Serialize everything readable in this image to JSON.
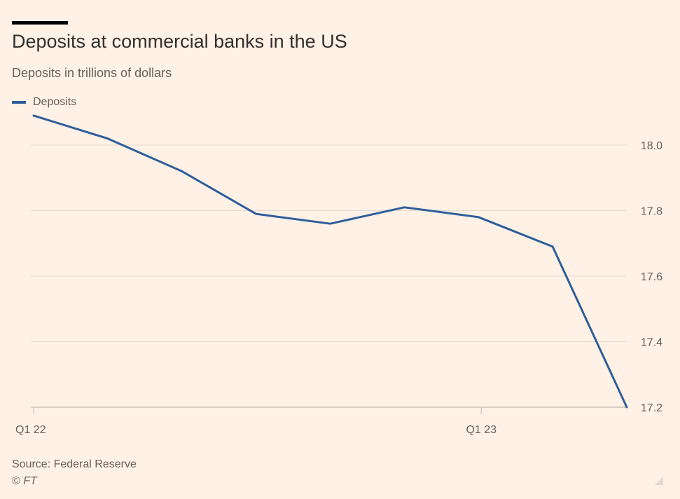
{
  "chart_data": {
    "type": "line",
    "title": "Deposits at commercial banks in the US",
    "subtitle": "Deposits in trillions of dollars",
    "x_tick_labels": [
      "Q1 22",
      "Q1 23"
    ],
    "y_ticks": [
      18.0,
      17.8,
      17.6,
      17.4,
      17.2
    ],
    "y_tick_labels": [
      "18.0",
      "17.8",
      "17.6",
      "17.4",
      "17.2"
    ],
    "ylim": [
      17.2,
      18.1
    ],
    "x_axis_position": "bottom",
    "y_axis_position": "right",
    "grid": true,
    "legend_position": "top-left",
    "x_index_of_tick_labels": [
      0,
      6
    ],
    "series": [
      {
        "name": "Deposits",
        "color": "#2E5E9A",
        "x_index": [
          0,
          1,
          2,
          3,
          4,
          5,
          6,
          7,
          8
        ],
        "values": [
          18.09,
          18.02,
          17.92,
          17.79,
          17.76,
          17.81,
          17.78,
          17.69,
          17.2
        ]
      }
    ],
    "source": "Source: Federal Reserve",
    "credit": "© FT"
  }
}
